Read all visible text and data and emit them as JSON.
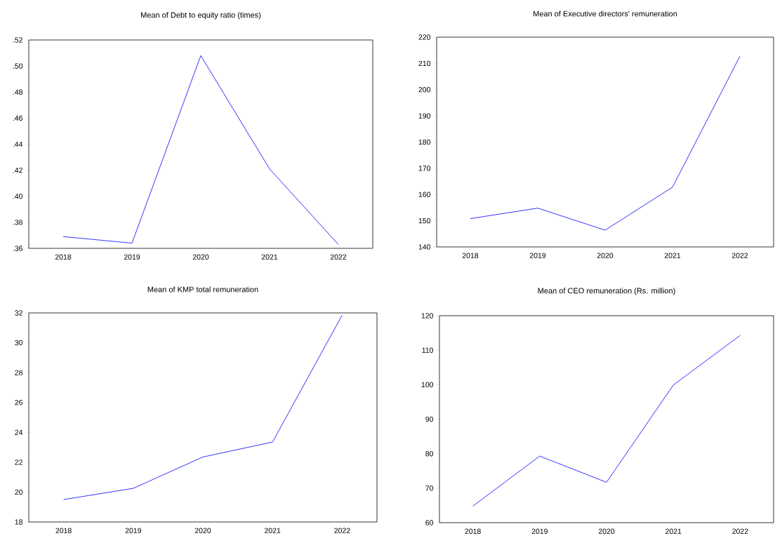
{
  "chart_data": [
    {
      "type": "line",
      "title": "Mean of Debt to equity ratio (times)",
      "categories": [
        "2018",
        "2019",
        "2020",
        "2021",
        "2022"
      ],
      "values": [
        0.369,
        0.364,
        0.508,
        0.421,
        0.363
      ],
      "color": "#0000ff",
      "ylim": [
        0.36,
        0.52
      ],
      "yticks": [
        {
          "value": 0.36,
          "label": ".36"
        },
        {
          "value": 0.38,
          "label": ".38"
        },
        {
          "value": 0.4,
          "label": ".40"
        },
        {
          "value": 0.42,
          "label": ".42"
        },
        {
          "value": 0.44,
          "label": ".44"
        },
        {
          "value": 0.46,
          "label": ".46"
        },
        {
          "value": 0.48,
          "label": ".48"
        },
        {
          "value": 0.5,
          "label": ".50"
        },
        {
          "value": 0.52,
          "label": ".52"
        }
      ]
    },
    {
      "type": "line",
      "title": "Mean of Executive directors' remuneration",
      "categories": [
        "2018",
        "2019",
        "2020",
        "2021",
        "2022"
      ],
      "values": [
        150.8,
        154.8,
        146.4,
        162.8,
        212.7
      ],
      "color": "#0000ff",
      "ylim": [
        140,
        220
      ],
      "yticks": [
        140,
        150,
        160,
        170,
        180,
        190,
        200,
        210,
        220
      ]
    },
    {
      "type": "line",
      "title": "Mean of KMP total remuneration",
      "categories": [
        "2018",
        "2019",
        "2020",
        "2021",
        "2022"
      ],
      "values": [
        19.5,
        20.25,
        22.35,
        23.35,
        31.85
      ],
      "color": "#0000ff",
      "ylim": [
        18,
        32
      ],
      "yticks": [
        18,
        20,
        22,
        24,
        26,
        28,
        30,
        32
      ]
    },
    {
      "type": "line",
      "title": "Mean of CEO remuneration (Rs. million)",
      "categories": [
        "2018",
        "2019",
        "2020",
        "2021",
        "2022"
      ],
      "values": [
        64.8,
        79.3,
        71.7,
        99.9,
        114.3
      ],
      "color": "#0000ff",
      "ylim": [
        60,
        120
      ],
      "yticks": [
        60,
        70,
        80,
        90,
        100,
        110,
        120
      ]
    }
  ]
}
